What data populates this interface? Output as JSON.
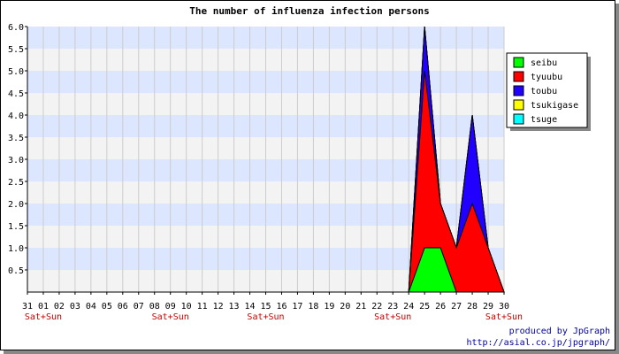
{
  "chart_data": {
    "type": "area",
    "title": "The number of influenza infection persons",
    "xlabel": "",
    "ylabel": "",
    "categories": [
      "31",
      "01",
      "02",
      "03",
      "04",
      "05",
      "06",
      "07",
      "08",
      "09",
      "10",
      "11",
      "12",
      "13",
      "14",
      "15",
      "16",
      "17",
      "18",
      "19",
      "20",
      "21",
      "22",
      "23",
      "24",
      "25",
      "26",
      "27",
      "28",
      "29",
      "30"
    ],
    "weekend_marks": [
      {
        "category": "01",
        "label": "Sat+Sun"
      },
      {
        "category": "09",
        "label": "Sat+Sun"
      },
      {
        "category": "15",
        "label": "Sat+Sun"
      },
      {
        "category": "23",
        "label": "Sat+Sun"
      },
      {
        "category": "30",
        "label": "Sat+Sun"
      }
    ],
    "stacked": true,
    "ylim": [
      0,
      6.0
    ],
    "yticks": [
      "6.0",
      "5.5",
      "5.0",
      "4.5",
      "4.0",
      "3.5",
      "3.0",
      "2.5",
      "2.0",
      "1.5",
      "1.0",
      "0.5"
    ],
    "grid": true,
    "legend_position": "top-right",
    "series": [
      {
        "name": "seibu",
        "color": "#00ff00",
        "values": [
          0,
          0,
          0,
          0,
          0,
          0,
          0,
          0,
          0,
          0,
          0,
          0,
          0,
          0,
          0,
          0,
          0,
          0,
          0,
          0,
          0,
          0,
          0,
          0,
          0,
          1,
          1,
          0,
          0,
          0,
          0
        ]
      },
      {
        "name": "tyuubu",
        "color": "#ff0000",
        "values": [
          0,
          0,
          0,
          0,
          0,
          0,
          0,
          0,
          0,
          0,
          0,
          0,
          0,
          0,
          0,
          0,
          0,
          0,
          0,
          0,
          0,
          0,
          0,
          0,
          0,
          4,
          1,
          1,
          2,
          1,
          0
        ]
      },
      {
        "name": "toubu",
        "color": "#2200ff",
        "values": [
          0,
          0,
          0,
          0,
          0,
          0,
          0,
          0,
          0,
          0,
          0,
          0,
          0,
          0,
          0,
          0,
          0,
          0,
          0,
          0,
          0,
          0,
          0,
          0,
          0,
          1,
          0,
          0,
          2,
          0,
          0
        ]
      },
      {
        "name": "tsukigase",
        "color": "#ffff00",
        "values": [
          0,
          0,
          0,
          0,
          0,
          0,
          0,
          0,
          0,
          0,
          0,
          0,
          0,
          0,
          0,
          0,
          0,
          0,
          0,
          0,
          0,
          0,
          0,
          0,
          0,
          0,
          0,
          0,
          0,
          0,
          0
        ]
      },
      {
        "name": "tsuge",
        "color": "#00ffff",
        "values": [
          0,
          0,
          0,
          0,
          0,
          0,
          0,
          0,
          0,
          0,
          0,
          0,
          0,
          0,
          0,
          0,
          0,
          0,
          0,
          0,
          0,
          0,
          0,
          0,
          0,
          0,
          0,
          0,
          0,
          0,
          0
        ]
      }
    ]
  },
  "colors": {
    "band_light": "#dde6ff",
    "band_gray": "#f3f3f3",
    "grid_line": "#cccccc",
    "weekend_text": "#cc0000",
    "credit_text": "#0000aa"
  },
  "credits": {
    "line1": "produced by JpGraph",
    "line2": "http://asial.co.jp/jpgraph/"
  }
}
